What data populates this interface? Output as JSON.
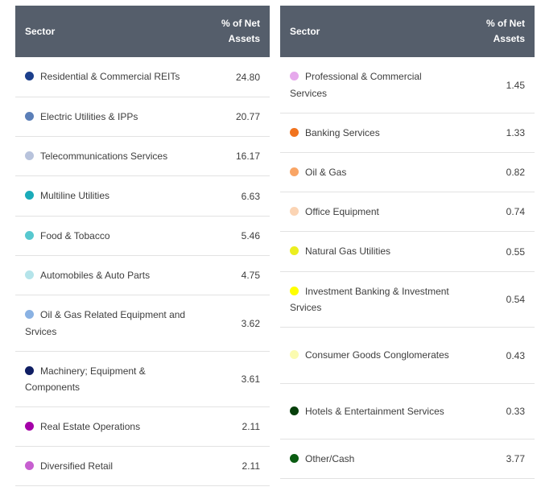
{
  "chart_data": {
    "type": "table",
    "columns": [
      "Sector",
      "% of Net Assets"
    ],
    "left": [
      {
        "label": "Residential & Commercial REITs",
        "value": "24.80",
        "color": "#1c3f8c"
      },
      {
        "label": "Electric Utilities & IPPs",
        "value": "20.77",
        "color": "#5b7fb8"
      },
      {
        "label": "Telecommunications Services",
        "value": "16.17",
        "color": "#b8c3dc"
      },
      {
        "label": "Multiline Utilities",
        "value": "6.63",
        "color": "#1aabb9"
      },
      {
        "label": "Food & Tobacco",
        "value": "5.46",
        "color": "#57c8cf"
      },
      {
        "label": "Automobiles & Auto Parts",
        "value": "4.75",
        "color": "#b5e4ea"
      },
      {
        "label": "Oil & Gas Related Equipment and Srvices",
        "value": "3.62",
        "color": "#8ab2e3"
      },
      {
        "label": "Machinery; Equipment & Components",
        "value": "3.61",
        "color": "#0f1e63"
      },
      {
        "label": "Real Estate Operations",
        "value": "2.11",
        "color": "#a400a8"
      },
      {
        "label": "Diversified Retail",
        "value": "2.11",
        "color": "#c75fd0"
      }
    ],
    "right": [
      {
        "label": "Professional & Commercial Services",
        "value": "1.45",
        "color": "#e6a9ec"
      },
      {
        "label": "Banking Services",
        "value": "1.33",
        "color": "#f1731e"
      },
      {
        "label": "Oil & Gas",
        "value": "0.82",
        "color": "#f9a565"
      },
      {
        "label": "Office Equipment",
        "value": "0.74",
        "color": "#fbd4b4"
      },
      {
        "label": "Natural Gas Utilities",
        "value": "0.55",
        "color": "#ebee20"
      },
      {
        "label": "Investment Banking & Investment Srvices",
        "value": "0.54",
        "color": "#ffff00"
      },
      {
        "label": "Consumer Goods Conglomerates",
        "value": "0.43",
        "color": "#fbfbb0"
      },
      {
        "label": "Hotels & Entertainment Services",
        "value": "0.33",
        "color": "#063f0a"
      },
      {
        "label": "Other/Cash",
        "value": "3.77",
        "color": "#0a5c12"
      }
    ]
  },
  "header": {
    "sector_label": "Sector",
    "pct_line1": "% of Net",
    "pct_line2": "Assets"
  }
}
